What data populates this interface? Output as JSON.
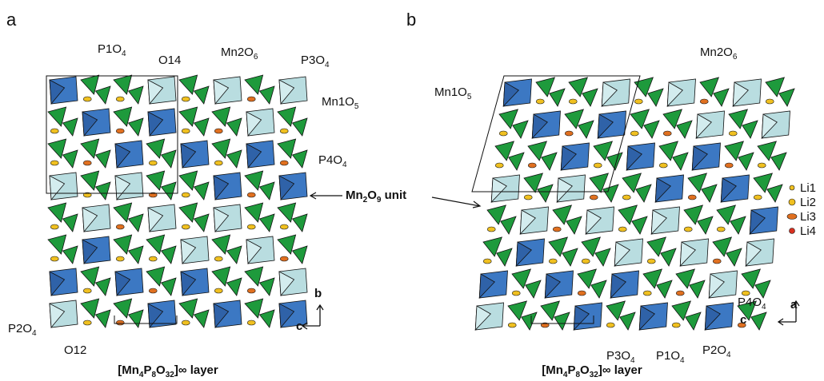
{
  "panels": [
    {
      "letter": "a",
      "labels": [
        [
          "P1O",
          "4"
        ],
        [
          "O14"
        ],
        [
          "Mn2O",
          "6"
        ],
        [
          "P3O",
          "4"
        ],
        [
          "Mn1O",
          "5"
        ],
        [
          "P4O",
          "4"
        ],
        [
          "P2O",
          "4"
        ],
        [
          "O12"
        ]
      ],
      "axes": [
        "b",
        "c"
      ],
      "caption": [
        "[Mn",
        "4",
        "P",
        "8",
        "O",
        "32",
        "]∞ layer"
      ]
    },
    {
      "letter": "b",
      "labels": [
        [
          "Mn2O",
          "6"
        ],
        [
          "Mn1O",
          "5"
        ],
        [
          "P4O",
          "4"
        ],
        [
          "P3O",
          "4"
        ],
        [
          "P1O",
          "4"
        ],
        [
          "P2O",
          "4"
        ]
      ],
      "axes": [
        "a",
        "c"
      ],
      "caption": [
        "[Mn",
        "4",
        "P",
        "8",
        "O",
        "32",
        "]∞ layer"
      ]
    }
  ],
  "shared_label": [
    "Mn",
    "2",
    "O",
    "9",
    " unit"
  ],
  "legend": [
    "Li1",
    "Li2",
    "Li3",
    "Li4"
  ]
}
